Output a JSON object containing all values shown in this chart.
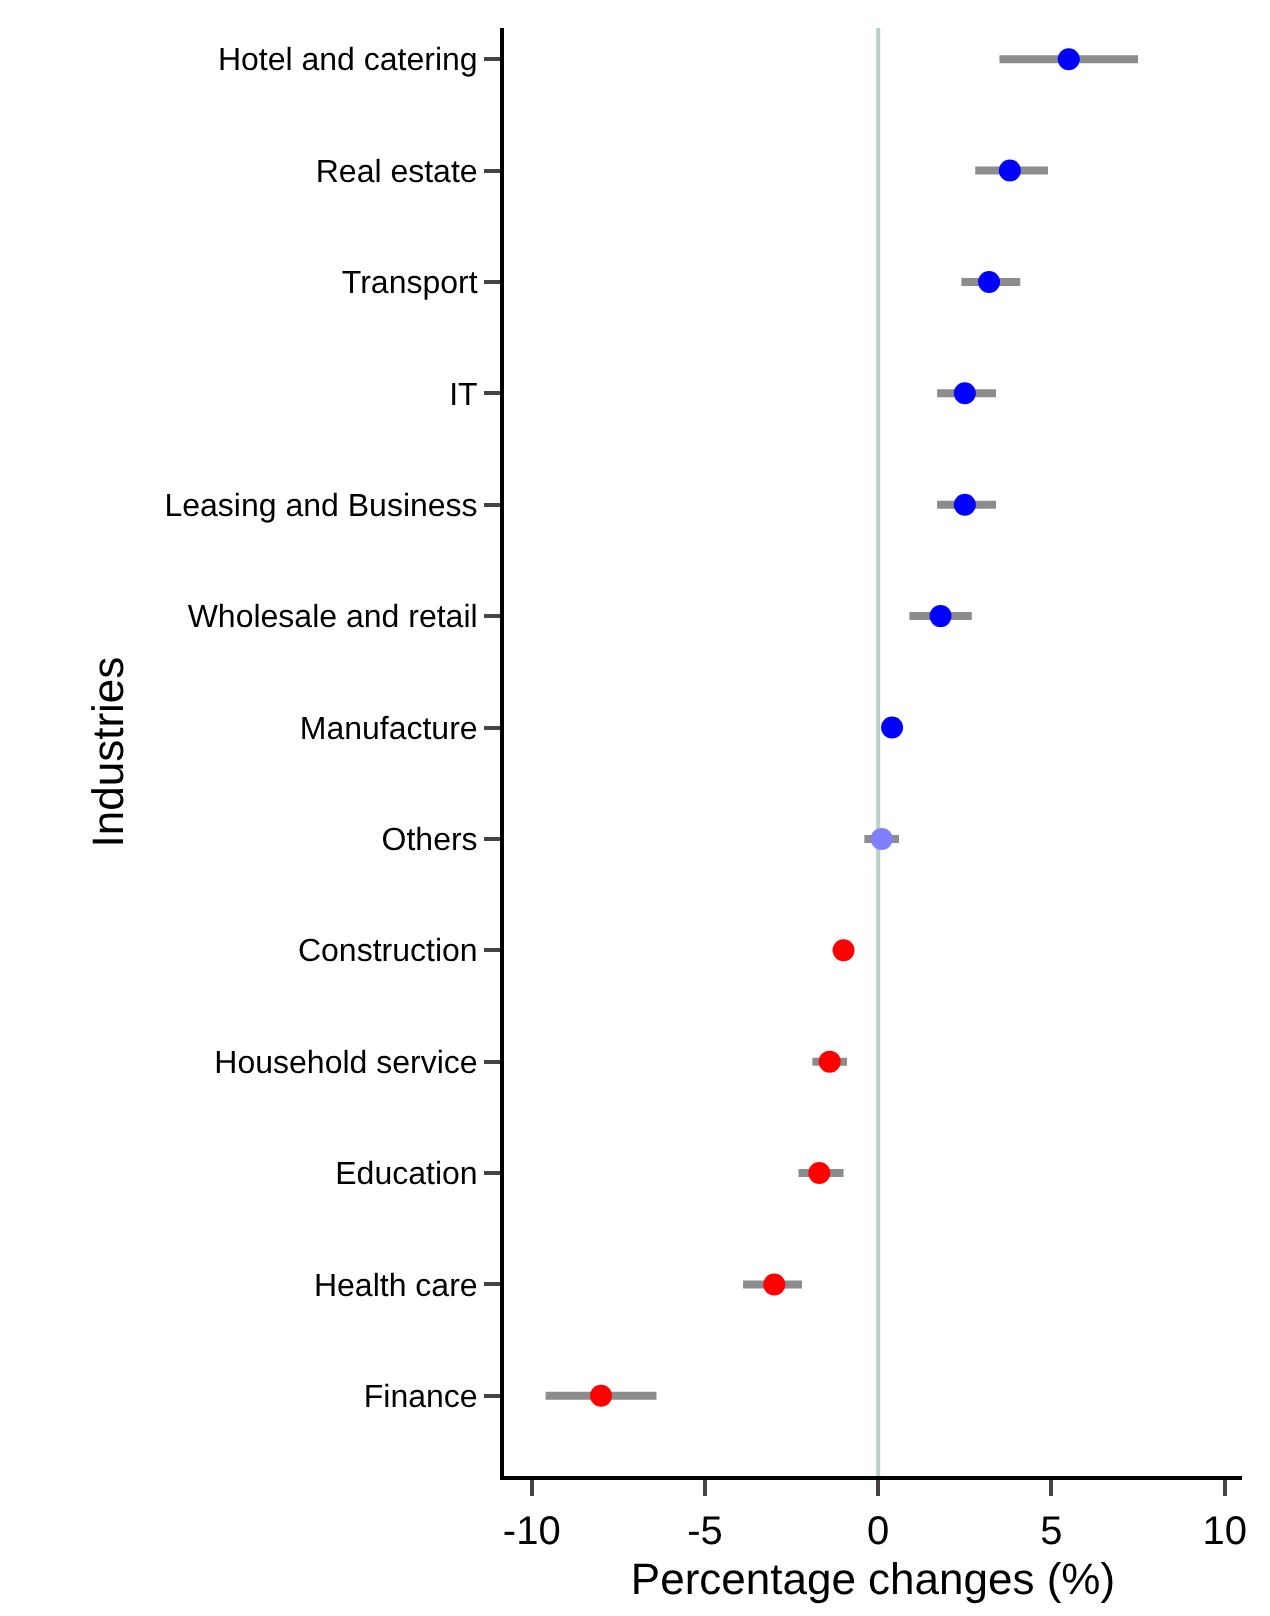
{
  "chart_data": {
    "type": "scatter",
    "orientation": "horizontal",
    "xlabel": "Percentage changes (%)",
    "ylabel": "Industries",
    "categories": [
      "Hotel and catering",
      "Real estate",
      "Transport",
      "IT",
      "Leasing and Business",
      "Wholesale and retail",
      "Manufacture",
      "Others",
      "Construction",
      "Household service",
      "Education",
      "Health care",
      "Finance"
    ],
    "series": [
      {
        "color": "#0000ff",
        "values": [
          5.5,
          3.8,
          3.2,
          2.5,
          2.5,
          1.8,
          0.4,
          null,
          null,
          null,
          null,
          null,
          null
        ],
        "errors": [
          [
            3.5,
            7.5
          ],
          [
            2.8,
            4.9
          ],
          [
            2.4,
            4.1
          ],
          [
            1.7,
            3.4
          ],
          [
            1.7,
            3.4
          ],
          [
            0.9,
            2.7
          ],
          null,
          null,
          null,
          null,
          null,
          null,
          null
        ]
      },
      {
        "color": "#8080ff",
        "values": [
          null,
          null,
          null,
          null,
          null,
          null,
          null,
          0.1,
          null,
          null,
          null,
          null,
          null
        ],
        "errors": [
          null,
          null,
          null,
          null,
          null,
          null,
          null,
          [
            -0.4,
            0.6
          ],
          null,
          null,
          null,
          null,
          null
        ]
      },
      {
        "color": "#ff0000",
        "values": [
          null,
          null,
          null,
          null,
          null,
          null,
          null,
          null,
          -1.0,
          -1.4,
          -1.7,
          -3.0,
          -8.0
        ],
        "errors": [
          null,
          null,
          null,
          null,
          null,
          null,
          null,
          null,
          null,
          [
            -1.9,
            -0.9
          ],
          [
            -2.3,
            -1.0
          ],
          [
            -3.9,
            -2.2
          ],
          [
            -9.6,
            -6.4
          ]
        ]
      }
    ],
    "xlim": [
      -10.8,
      10.5
    ],
    "xticks": [
      -10,
      -5,
      0,
      5,
      10
    ],
    "ref_lines": [
      {
        "axis": "x",
        "value": 0,
        "color": "#b8d0c8"
      }
    ],
    "marker": "circle",
    "grid": false
  }
}
